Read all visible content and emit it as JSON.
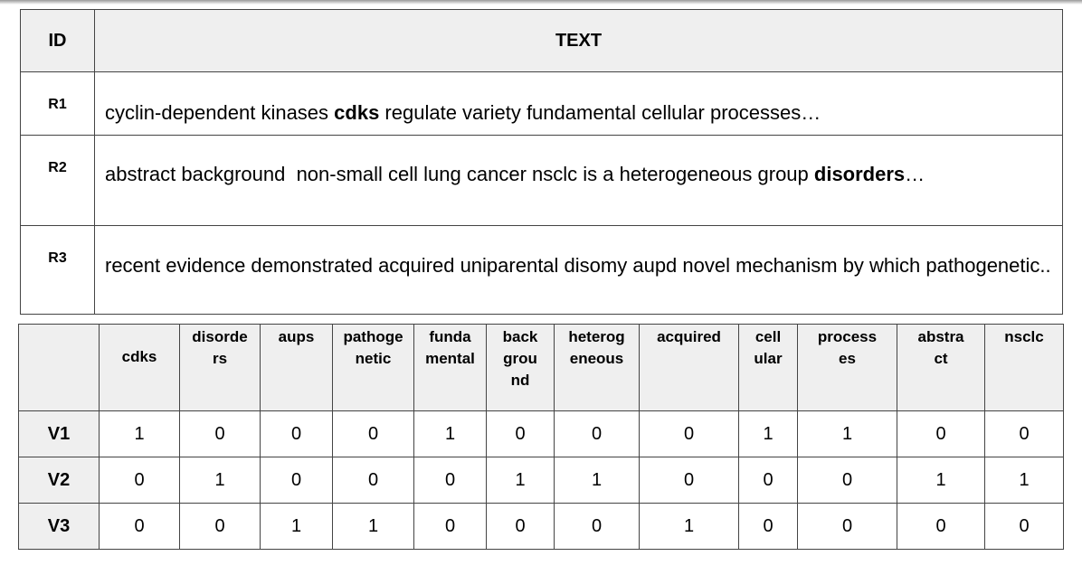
{
  "doc_table": {
    "header": {
      "id": "ID",
      "text": "TEXT"
    },
    "rows": [
      {
        "id": "R1",
        "segments": [
          {
            "text": "cyclin-dependent kinases ",
            "bold": false
          },
          {
            "text": "cdks",
            "bold": true
          },
          {
            "text": " regulate variety fundamental cellular processes…",
            "bold": false
          }
        ]
      },
      {
        "id": "R2",
        "segments": [
          {
            "text": "abstract background  non-small cell lung cancer nsclc is a heterogeneous group ",
            "bold": false
          },
          {
            "text": "disorders",
            "bold": true
          },
          {
            "text": "…",
            "bold": false
          }
        ]
      },
      {
        "id": "R3",
        "segments": [
          {
            "text": "recent evidence demonstrated acquired uniparental disomy aupd novel mechanism by which pathogenetic..",
            "bold": false
          }
        ]
      }
    ]
  },
  "vector_table": {
    "columns": [
      "cdks",
      "disorders",
      "aups",
      "pathogenetic",
      "fundamental",
      "background",
      "heterogeneous",
      "acquired",
      "cellular",
      "processes",
      "abstract",
      "nsclc"
    ],
    "rows": [
      {
        "label": "V1",
        "values": [
          "1",
          "0",
          "0",
          "0",
          "1",
          "0",
          "0",
          "0",
          "1",
          "1",
          "0",
          "0"
        ]
      },
      {
        "label": "V2",
        "values": [
          "0",
          "1",
          "0",
          "0",
          "0",
          "1",
          "1",
          "0",
          "0",
          "0",
          "1",
          "1"
        ]
      },
      {
        "label": "V3",
        "values": [
          "0",
          "0",
          "1",
          "1",
          "0",
          "0",
          "0",
          "1",
          "0",
          "0",
          "0",
          "0"
        ]
      }
    ]
  }
}
